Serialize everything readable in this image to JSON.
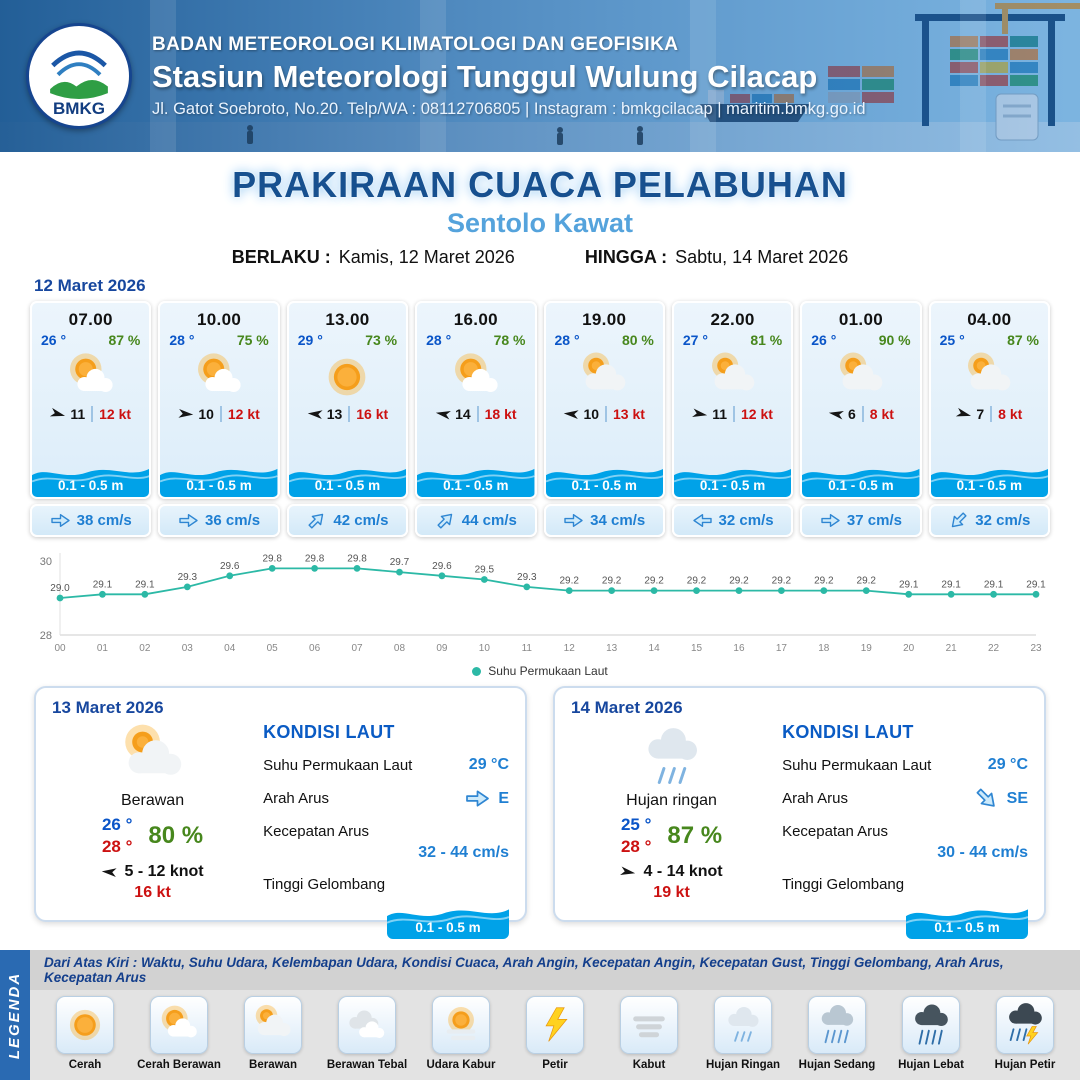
{
  "header": {
    "logo_text": "BMKG",
    "org": "BADAN METEOROLOGI KLIMATOLOGI DAN GEOFISIKA",
    "station": "Stasiun Meteorologi Tunggul Wulung Cilacap",
    "address": "Jl. Gatot Soebroto, No.20. Telp/WA : 08112706805 | Instagram : bmkgcilacap | maritim.bmkg.go.id"
  },
  "title": {
    "main": "PRAKIRAAN CUACA PELABUHAN",
    "subtitle": "Sentolo Kawat",
    "valid_label": "BERLAKU :",
    "valid_value": "Kamis, 12 Maret 2026",
    "until_label": "HINGGA :",
    "until_value": "Sabtu, 14 Maret 2026"
  },
  "forecast": {
    "date": "12 Maret 2026",
    "cards": [
      {
        "time": "07.00",
        "temp": "26 °",
        "humidity": "87 %",
        "icon": "cerah-berawan",
        "wind_dir": 15,
        "wind": "11",
        "gust": "12 kt",
        "wave": "0.1 - 0.5 m",
        "current_dir": 0,
        "current": "38 cm/s"
      },
      {
        "time": "10.00",
        "temp": "28 °",
        "humidity": "75 %",
        "icon": "cerah-berawan",
        "wind_dir": 5,
        "wind": "10",
        "gust": "12 kt",
        "wave": "0.1 - 0.5 m",
        "current_dir": 0,
        "current": "36 cm/s"
      },
      {
        "time": "13.00",
        "temp": "29 °",
        "humidity": "73 %",
        "icon": "cerah",
        "wind_dir": 185,
        "wind": "13",
        "gust": "16 kt",
        "wave": "0.1 - 0.5 m",
        "current_dir": -45,
        "current": "42 cm/s"
      },
      {
        "time": "16.00",
        "temp": "28 °",
        "humidity": "78 %",
        "icon": "cerah-berawan",
        "wind_dir": 190,
        "wind": "14",
        "gust": "18 kt",
        "wave": "0.1 - 0.5 m",
        "current_dir": -45,
        "current": "44 cm/s"
      },
      {
        "time": "19.00",
        "temp": "28 °",
        "humidity": "80 %",
        "icon": "berawan",
        "wind_dir": 185,
        "wind": "10",
        "gust": "13 kt",
        "wave": "0.1 - 0.5 m",
        "current_dir": 0,
        "current": "34 cm/s"
      },
      {
        "time": "22.00",
        "temp": "27 °",
        "humidity": "81 %",
        "icon": "berawan",
        "wind_dir": 10,
        "wind": "11",
        "gust": "12 kt",
        "wave": "0.1 - 0.5 m",
        "current_dir": 180,
        "current": "32 cm/s"
      },
      {
        "time": "01.00",
        "temp": "26 °",
        "humidity": "90 %",
        "icon": "berawan",
        "wind_dir": 190,
        "wind": "6",
        "gust": "8 kt",
        "wave": "0.1 - 0.5 m",
        "current_dir": 0,
        "current": "37 cm/s"
      },
      {
        "time": "04.00",
        "temp": "25 °",
        "humidity": "87 %",
        "icon": "berawan",
        "wind_dir": 15,
        "wind": "7",
        "gust": "8 kt",
        "wave": "0.1 - 0.5 m",
        "current_dir": 135,
        "current": "32 cm/s"
      }
    ]
  },
  "chart_data": {
    "type": "line",
    "title": "Suhu Permukaan Laut",
    "series_name": "Suhu Permukaan Laut",
    "x": [
      "00",
      "01",
      "02",
      "03",
      "04",
      "05",
      "06",
      "07",
      "08",
      "09",
      "10",
      "11",
      "12",
      "13",
      "14",
      "15",
      "16",
      "17",
      "18",
      "19",
      "20",
      "21",
      "22",
      "23"
    ],
    "values": [
      29.0,
      29.1,
      29.1,
      29.3,
      29.6,
      29.8,
      29.8,
      29.8,
      29.7,
      29.6,
      29.5,
      29.3,
      29.2,
      29.2,
      29.2,
      29.2,
      29.2,
      29.2,
      29.2,
      29.2,
      29.1,
      29.1,
      29.1,
      29.1
    ],
    "ylim": [
      28,
      30
    ],
    "color": "#2cb9a6",
    "grid": "minimal",
    "legend_position": "bottom"
  },
  "day_panels": [
    {
      "date": "13 Maret 2026",
      "icon": "berawan",
      "condition": "Berawan",
      "temp_min": "26 °",
      "temp_max": "28 °",
      "humidity": "80 %",
      "wind_dir": 185,
      "wind_range": "5 - 12 knot",
      "gust": "16 kt",
      "sea_title": "KONDISI LAUT",
      "sst_label": "Suhu Permukaan Laut",
      "sst_value": "29 °C",
      "current_dir_label": "Arah Arus",
      "current_dir_deg": 0,
      "current_dir_text": "E",
      "current_speed_label": "Kecepatan Arus",
      "current_speed": "32 - 44 cm/s",
      "wave_label": "Tinggi Gelombang",
      "wave_value": "0.1 - 0.5 m"
    },
    {
      "date": "14 Maret 2026",
      "icon": "hujan-ringan",
      "condition": "Hujan ringan",
      "temp_min": "25 °",
      "temp_max": "28 °",
      "humidity": "87 %",
      "wind_dir": 10,
      "wind_range": "4 - 14 knot",
      "gust": "19 kt",
      "sea_title": "KONDISI LAUT",
      "sst_label": "Suhu Permukaan Laut",
      "sst_value": "29 °C",
      "current_dir_label": "Arah Arus",
      "current_dir_deg": 45,
      "current_dir_text": "SE",
      "current_speed_label": "Kecepatan Arus",
      "current_speed": "30 - 44 cm/s",
      "wave_label": "Tinggi Gelombang",
      "wave_value": "0.1 - 0.5 m"
    }
  ],
  "legend": {
    "vertical_label": "LEGENDA",
    "note": "Dari Atas Kiri : Waktu, Suhu Udara, Kelembapan Udara, Kondisi Cuaca, Arah Angin, Kecepatan Angin, Kecepatan Gust, Tinggi Gelombang, Arah Arus, Kecepatan Arus",
    "items": [
      {
        "label": "Cerah",
        "icon": "cerah"
      },
      {
        "label": "Cerah Berawan",
        "icon": "cerah-berawan"
      },
      {
        "label": "Berawan",
        "icon": "berawan"
      },
      {
        "label": "Berawan Tebal",
        "icon": "berawan-tebal"
      },
      {
        "label": "Udara Kabur",
        "icon": "udara-kabur"
      },
      {
        "label": "Petir",
        "icon": "petir"
      },
      {
        "label": "Kabut",
        "icon": "kabut"
      },
      {
        "label": "Hujan Ringan",
        "icon": "hujan-ringan"
      },
      {
        "label": "Hujan Sedang",
        "icon": "hujan-sedang"
      },
      {
        "label": "Hujan Lebat",
        "icon": "hujan-lebat"
      },
      {
        "label": "Hujan Petir",
        "icon": "hujan-petir"
      }
    ]
  },
  "colors": {
    "header_blue": "#2a67ad",
    "title_blue": "#17508f",
    "subtitle_blue": "#55a3dc",
    "date_blue": "#17479e",
    "temp_blue": "#0a55c8",
    "humidity_green": "#47871d",
    "gust_red": "#cc1111",
    "wave_blue": "#00a2e8",
    "current_blue": "#1f7fd2",
    "chart_teal": "#2cb9a6"
  }
}
